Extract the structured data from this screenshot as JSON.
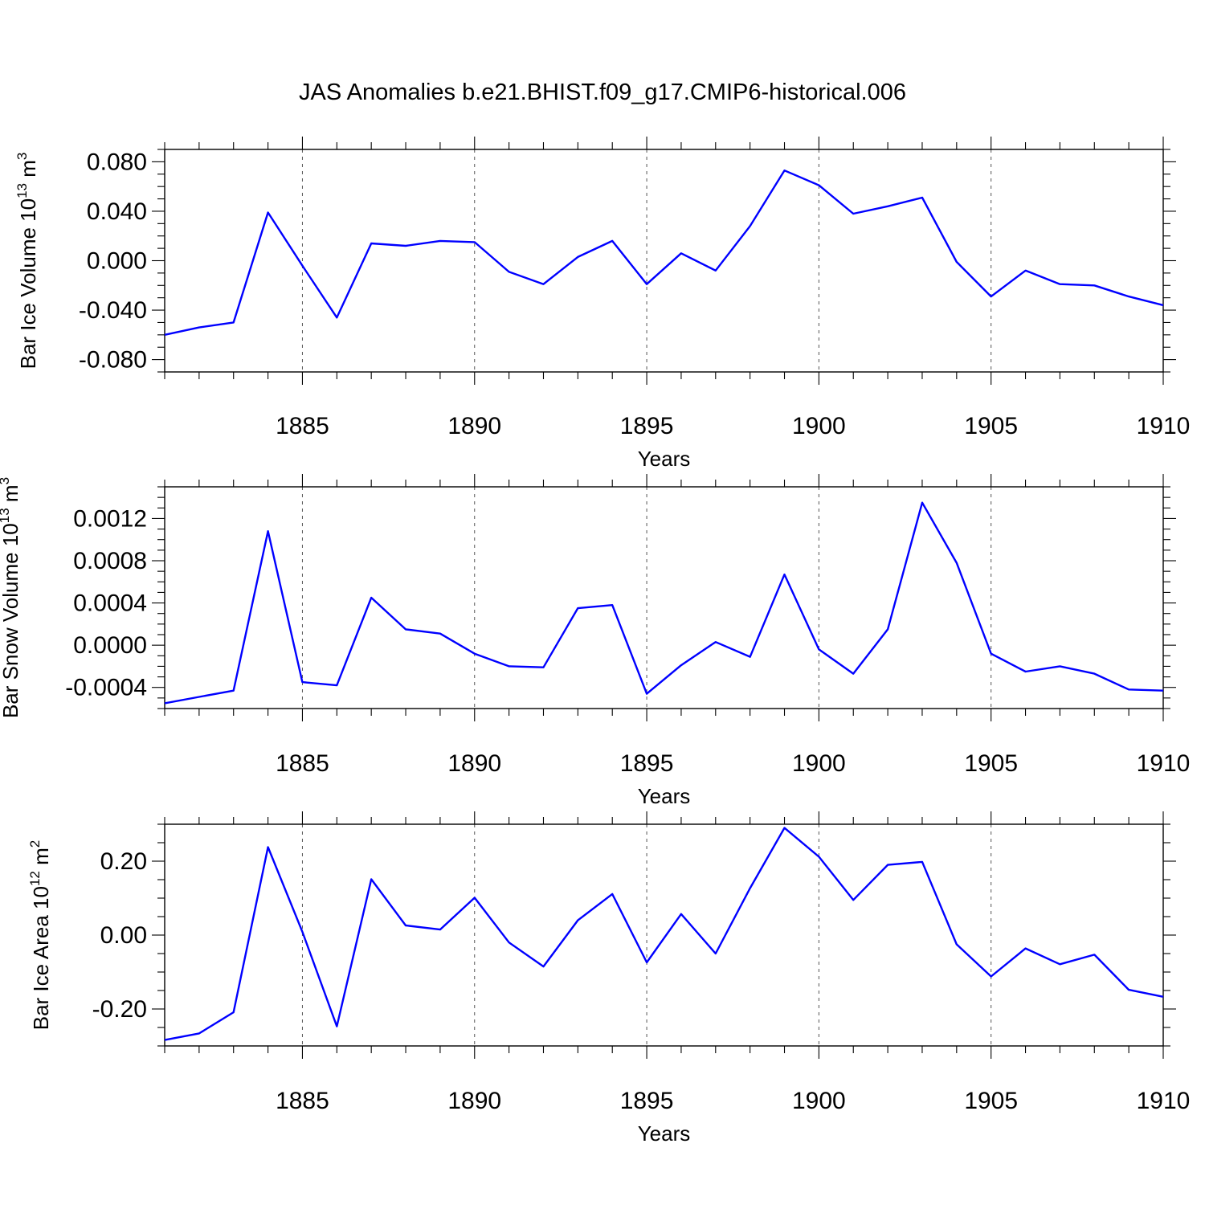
{
  "title": "JAS Anomalies b.e21.BHIST.f09_g17.CMIP6-historical.006",
  "colors": {
    "line": "#0000ff",
    "frame": "#000000",
    "grid": "#555555"
  },
  "chart_data": [
    {
      "type": "line",
      "name": "ice-volume",
      "title": "JAS Anomalies b.e21.BHIST.f09_g17.CMIP6-historical.006",
      "ylabel": {
        "main": "Bar Ice Volume 10",
        "exp": "13",
        "unit": " m",
        "unit_exp": "3"
      },
      "xlabel": "Years",
      "xlim": [
        1881,
        1910
      ],
      "ylim": [
        -0.09,
        0.09
      ],
      "xticks": [
        1885,
        1890,
        1895,
        1900,
        1905,
        1910
      ],
      "yticks": [
        -0.08,
        -0.04,
        0.0,
        0.04,
        0.08
      ],
      "ytick_labels": [
        "-0.080",
        "-0.040",
        "0.000",
        "0.040",
        "0.080"
      ],
      "y_minor_step": 0.01,
      "vgrid": [
        1885,
        1890,
        1895,
        1900,
        1905
      ],
      "x": [
        1881,
        1882,
        1883,
        1884,
        1885,
        1886,
        1887,
        1888,
        1889,
        1890,
        1891,
        1892,
        1893,
        1894,
        1895,
        1896,
        1897,
        1898,
        1899,
        1900,
        1901,
        1902,
        1903,
        1904,
        1905,
        1906,
        1907,
        1908,
        1909,
        1910
      ],
      "values": [
        -0.06,
        -0.054,
        -0.05,
        0.039,
        -0.004,
        -0.046,
        0.014,
        0.012,
        0.016,
        0.015,
        -0.009,
        -0.019,
        0.003,
        0.016,
        -0.019,
        0.006,
        -0.008,
        0.028,
        0.073,
        0.061,
        0.038,
        0.044,
        0.051,
        -0.001,
        -0.029,
        -0.008,
        -0.019,
        -0.02,
        -0.029,
        -0.036
      ]
    },
    {
      "type": "line",
      "name": "snow-volume",
      "ylabel": {
        "main": "Bar Snow Volume 10",
        "exp": "13",
        "unit": " m",
        "unit_exp": "3"
      },
      "xlabel": "Years",
      "xlim": [
        1881,
        1910
      ],
      "ylim": [
        -0.0006,
        0.0015
      ],
      "xticks": [
        1885,
        1890,
        1895,
        1900,
        1905,
        1910
      ],
      "yticks": [
        -0.0004,
        0.0,
        0.0004,
        0.0008,
        0.0012
      ],
      "ytick_labels": [
        "-0.0004",
        "0.0000",
        "0.0004",
        "0.0008",
        "0.0012"
      ],
      "y_minor_step": 0.0001,
      "vgrid": [
        1885,
        1890,
        1895,
        1900,
        1905
      ],
      "x": [
        1881,
        1882,
        1883,
        1884,
        1885,
        1886,
        1887,
        1888,
        1889,
        1890,
        1891,
        1892,
        1893,
        1894,
        1895,
        1896,
        1897,
        1898,
        1899,
        1900,
        1901,
        1902,
        1903,
        1904,
        1905,
        1906,
        1907,
        1908,
        1909,
        1910
      ],
      "values": [
        -0.00055,
        -0.00049,
        -0.00043,
        0.00108,
        -0.00035,
        -0.00038,
        0.00045,
        0.00015,
        0.00011,
        -8e-05,
        -0.0002,
        -0.00021,
        0.00035,
        0.00038,
        -0.00046,
        -0.00019,
        3e-05,
        -0.00011,
        0.00067,
        -4e-05,
        -0.00027,
        0.00015,
        0.00135,
        0.00078,
        -8e-05,
        -0.00025,
        -0.0002,
        -0.00027,
        -0.00042,
        -0.00043
      ]
    },
    {
      "type": "line",
      "name": "ice-area",
      "ylabel": {
        "main": "Bar Ice Area 10",
        "exp": "12",
        "unit": " m",
        "unit_exp": "2"
      },
      "xlabel": "Years",
      "xlim": [
        1881,
        1910
      ],
      "ylim": [
        -0.3,
        0.3
      ],
      "xticks": [
        1885,
        1890,
        1895,
        1900,
        1905,
        1910
      ],
      "yticks": [
        -0.2,
        0.0,
        0.2
      ],
      "ytick_labels": [
        "-0.20",
        "0.00",
        "0.20"
      ],
      "y_minor_step": 0.05,
      "vgrid": [
        1885,
        1890,
        1895,
        1900,
        1905
      ],
      "x": [
        1881,
        1882,
        1883,
        1884,
        1885,
        1886,
        1887,
        1888,
        1889,
        1890,
        1891,
        1892,
        1893,
        1894,
        1895,
        1896,
        1897,
        1898,
        1899,
        1900,
        1901,
        1902,
        1903,
        1904,
        1905,
        1906,
        1907,
        1908,
        1909,
        1910
      ],
      "values": [
        -0.284,
        -0.266,
        -0.209,
        0.238,
        0.009,
        -0.247,
        0.151,
        0.026,
        0.015,
        0.101,
        -0.02,
        -0.085,
        0.04,
        0.111,
        -0.074,
        0.057,
        -0.05,
        0.127,
        0.29,
        0.212,
        0.095,
        0.19,
        0.198,
        -0.025,
        -0.112,
        -0.036,
        -0.079,
        -0.053,
        -0.148,
        -0.167
      ]
    }
  ]
}
